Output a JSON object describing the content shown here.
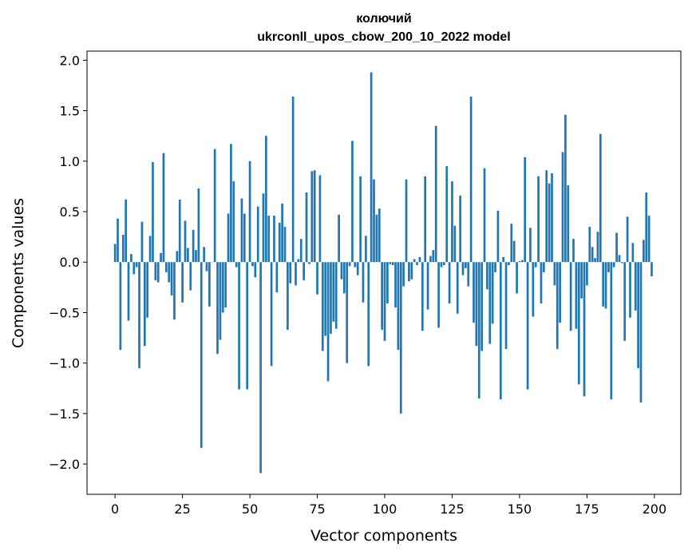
{
  "chart_data": {
    "type": "bar",
    "title": [
      "колючий",
      "ukrconll_upos_cbow_200_10_2022 model"
    ],
    "xlabel": "Vector components",
    "ylabel": "Components values",
    "xlim": [
      -10.4,
      209.8
    ],
    "ylim": [
      -2.3,
      2.09
    ],
    "xticks": [
      0,
      25,
      50,
      75,
      100,
      125,
      150,
      175,
      200
    ],
    "yticks": [
      2.0,
      1.5,
      1.0,
      0.5,
      0.0,
      -0.5,
      -1.0,
      -1.5,
      -2.0
    ],
    "xtick_labels": [
      "0",
      "25",
      "50",
      "75",
      "100",
      "125",
      "150",
      "175",
      "200"
    ],
    "ytick_labels": [
      "2.0",
      "1.5",
      "1.0",
      "0.5",
      "0.0",
      "−0.5",
      "−1.0",
      "−1.5",
      "−2.0"
    ],
    "grid": false,
    "bar_color": "#1f77b4",
    "values": [
      0.18,
      0.43,
      -0.87,
      0.27,
      0.62,
      -0.58,
      0.08,
      -0.12,
      -0.05,
      -1.05,
      0.4,
      -0.83,
      -0.55,
      0.26,
      0.99,
      -0.18,
      -0.2,
      0.09,
      1.08,
      -0.1,
      -0.2,
      -0.33,
      -0.57,
      0.11,
      0.62,
      -0.4,
      0.41,
      0.14,
      -0.28,
      0.32,
      0.12,
      0.73,
      -1.84,
      0.15,
      -0.09,
      -0.44,
      0.0,
      1.12,
      -0.91,
      -0.77,
      -0.5,
      -0.45,
      0.48,
      1.17,
      0.8,
      -0.05,
      -1.26,
      0.63,
      0.48,
      -1.26,
      1.0,
      -0.04,
      -0.15,
      0.55,
      -2.09,
      0.68,
      1.25,
      0.46,
      -1.03,
      0.46,
      -0.3,
      0.39,
      0.58,
      0.35,
      -0.67,
      -0.21,
      1.64,
      -0.23,
      0.03,
      0.23,
      -0.18,
      0.69,
      -0.02,
      0.9,
      0.91,
      -0.32,
      0.86,
      -0.88,
      -0.73,
      -1.18,
      -0.71,
      -0.59,
      -0.66,
      0.47,
      -0.17,
      -0.31,
      -1.0,
      -0.04,
      1.2,
      -0.05,
      -0.13,
      0.85,
      -0.4,
      0.26,
      -1.03,
      1.88,
      0.82,
      0.47,
      0.53,
      -0.67,
      -0.78,
      -0.41,
      -0.02,
      -0.03,
      -0.45,
      -0.87,
      -1.5,
      -0.24,
      0.82,
      -0.19,
      -0.17,
      0.03,
      -0.03,
      0.05,
      -0.68,
      0.85,
      -0.47,
      0.06,
      0.12,
      1.35,
      -0.65,
      -0.05,
      -0.03,
      0.95,
      -0.41,
      0.8,
      0.36,
      -0.51,
      0.66,
      -0.13,
      -0.06,
      -0.24,
      1.64,
      -0.6,
      -0.83,
      -1.35,
      -0.88,
      0.93,
      -0.27,
      -0.81,
      -0.61,
      -0.1,
      0.51,
      -1.36,
      0.05,
      -0.86,
      -0.03,
      0.38,
      0.21,
      -0.31,
      0.01,
      0.02,
      1.04,
      -1.26,
      0.34,
      -0.54,
      -0.05,
      0.85,
      -0.41,
      -0.1,
      0.91,
      0.78,
      0.88,
      -0.23,
      -0.86,
      -0.6,
      1.09,
      1.46,
      0.76,
      -0.68,
      0.23,
      -0.66,
      -1.21,
      -0.36,
      -1.33,
      -0.23,
      0.35,
      0.15,
      0.04,
      0.3,
      1.27,
      -0.44,
      -0.46,
      -0.1,
      -1.36,
      -0.05,
      0.29,
      0.07,
      -0.01,
      -0.78,
      0.45,
      -0.55,
      0.19,
      -0.48,
      -1.05,
      -1.39,
      0.22,
      0.69,
      0.46,
      -0.14
    ]
  }
}
